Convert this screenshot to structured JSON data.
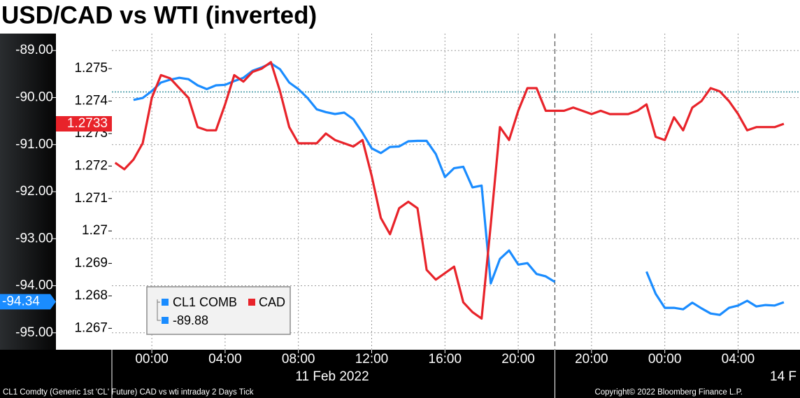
{
  "chart_data": {
    "type": "line",
    "title": "USD/CAD vs WTI (inverted)",
    "x": [
      -2,
      -1.5,
      -1,
      -0.5,
      0,
      0.5,
      1,
      1.5,
      2,
      2.5,
      3,
      3.5,
      4,
      4.5,
      5,
      5.5,
      6,
      6.5,
      7,
      7.5,
      8,
      8.5,
      9,
      9.5,
      10,
      10.5,
      11,
      11.5,
      12,
      12.5,
      13,
      13.5,
      14,
      14.5,
      15,
      15.5,
      16,
      16.5,
      17,
      17.5,
      18,
      18.5,
      19,
      19.5,
      20,
      20.5,
      21,
      21.5,
      22,
      22.5,
      23,
      23.5,
      24,
      24.5,
      25,
      25.5,
      26,
      26.5,
      27,
      27.5,
      28,
      28.5,
      29,
      29.5,
      30,
      30.5,
      31,
      31.5,
      32,
      32.5,
      33,
      33.5,
      34,
      34.5,
      35
    ],
    "series": [
      {
        "name": "CL1 COMB",
        "color": "#1a8cff",
        "axis": "y",
        "legend_value": -89.88,
        "last_value": -94.34,
        "values": [
          null,
          null,
          -90.05,
          -90.01,
          -89.86,
          -89.68,
          -89.62,
          -89.58,
          -89.61,
          -89.74,
          -89.82,
          -89.74,
          -89.73,
          -89.65,
          -89.58,
          -89.43,
          -89.36,
          -89.27,
          -89.4,
          -89.68,
          -89.82,
          -90.01,
          -90.25,
          -90.31,
          -90.35,
          -90.32,
          -90.46,
          -90.75,
          -91.08,
          -91.18,
          -91.05,
          -91.04,
          -90.93,
          -90.92,
          -90.92,
          -91.2,
          -91.69,
          -91.5,
          -91.47,
          -91.91,
          -91.87,
          -93.95,
          -93.43,
          -93.25,
          -93.55,
          -93.52,
          -93.75,
          -93.8,
          -93.92,
          null,
          null,
          null,
          null,
          null,
          null,
          null,
          null,
          null,
          -93.7,
          -94.17,
          -94.47,
          -94.47,
          -94.5,
          -94.36,
          -94.48,
          -94.59,
          -94.62,
          -94.47,
          -94.42,
          -94.32,
          -94.44,
          -94.41,
          -94.42,
          -94.35,
          null
        ]
      },
      {
        "name": "CAD",
        "color": "#e8232a",
        "axis": "y2",
        "last_value": 1.2733,
        "values": [
          1.2721,
          1.2719,
          1.2722,
          1.2727,
          1.2741,
          1.2748,
          1.2747,
          1.2744,
          1.2741,
          1.2732,
          1.2731,
          1.2731,
          1.2739,
          1.2748,
          1.2746,
          1.2749,
          1.275,
          1.2752,
          1.2743,
          1.2732,
          1.2727,
          1.2727,
          1.2727,
          1.273,
          1.2728,
          1.2727,
          1.2726,
          1.2728,
          1.2717,
          1.2704,
          1.2699,
          1.2707,
          1.2709,
          1.2707,
          1.2688,
          1.2685,
          1.2687,
          1.2689,
          1.2678,
          1.2675,
          1.2673,
          1.2702,
          1.2732,
          1.2728,
          1.2737,
          1.2744,
          1.2744,
          1.2737,
          1.2737,
          1.2737,
          1.2738,
          1.2737,
          1.2736,
          1.2737,
          1.2736,
          1.2736,
          1.2736,
          1.2737,
          1.2739,
          1.2729,
          1.2728,
          1.2735,
          1.2731,
          1.2738,
          1.274,
          1.2744,
          1.2743,
          1.274,
          1.2736,
          1.2731,
          1.2732,
          1.2732,
          1.2732,
          1.2733,
          null
        ]
      }
    ],
    "xlim": [
      -2.18,
      35.38
    ],
    "xticks": [
      {
        "value": 0,
        "label": "00:00"
      },
      {
        "value": 4,
        "label": "04:00"
      },
      {
        "value": 8,
        "label": "08:00"
      },
      {
        "value": 12,
        "label": "12:00"
      },
      {
        "value": 16,
        "label": "16:00"
      },
      {
        "value": 20,
        "label": "20:00"
      },
      {
        "value": 24,
        "label": "20:00"
      },
      {
        "value": 28,
        "label": "00:00"
      },
      {
        "value": 32,
        "label": "04:00"
      }
    ],
    "session_break": 22,
    "date_labels": [
      "11 Feb 2022",
      "14 F"
    ],
    "ylim": [
      -95.36,
      -88.64
    ],
    "yticks": [
      {
        "value": -89,
        "label": "-89.00"
      },
      {
        "value": -90,
        "label": "-90.00"
      },
      {
        "value": -91,
        "label": "-91.00"
      },
      {
        "value": -92,
        "label": "-92.00"
      },
      {
        "value": -93,
        "label": "-93.00"
      },
      {
        "value": -94,
        "label": "-94.00"
      },
      {
        "value": -95,
        "label": "-95.00"
      }
    ],
    "y2lim": [
      1.26634,
      1.27608
    ],
    "y2ticks": [
      1.275,
      1.274,
      1.273,
      1.272,
      1.271,
      1.27,
      1.269,
      1.268,
      1.267
    ],
    "grid": true,
    "footer_left": "CL1 Comdty (Generic 1st 'CL' Future) CAD vs wti intraday 2 Days  Tick",
    "footer_right": "Copyright© 2022 Bloomberg Finance L.P."
  }
}
